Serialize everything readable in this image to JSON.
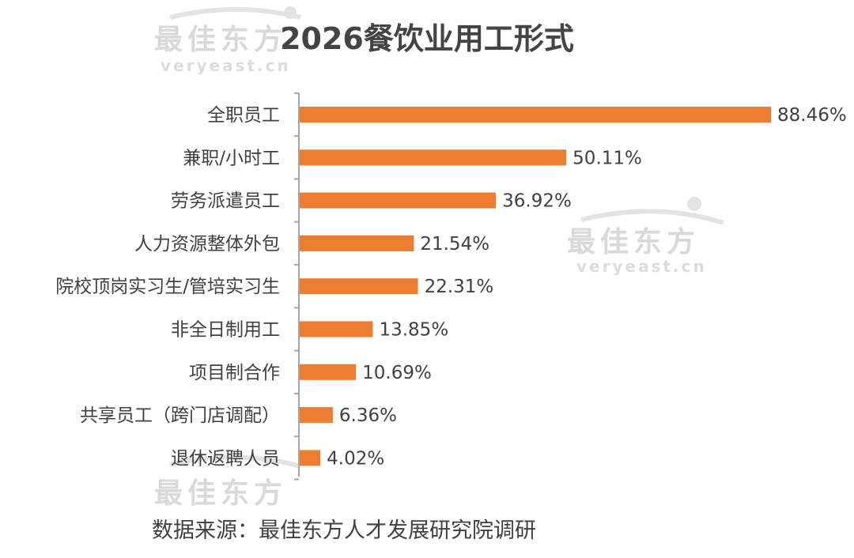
{
  "chart_data": {
    "type": "bar",
    "orientation": "horizontal",
    "title": "2026餐饮业用工形式",
    "categories": [
      "全职员工",
      "兼职/小时工",
      "劳务派遣员工",
      "人力资源整体外包",
      "院校顶岗实习生/管培实习生",
      "非全日制用工",
      "项目制合作",
      "共享员工（跨门店调配）",
      "退休返聘人员"
    ],
    "values": [
      88.46,
      50.11,
      36.92,
      21.54,
      22.31,
      13.85,
      10.69,
      6.36,
      4.02
    ],
    "value_labels": [
      "88.46%",
      "50.11%",
      "36.92%",
      "21.54%",
      "22.31%",
      "13.85%",
      "10.69%",
      "6.36%",
      "4.02%"
    ],
    "xlim": [
      0,
      88.46
    ],
    "grid": false,
    "bar_color": "#ed7d31"
  },
  "source": "数据来源：最佳东方人才发展研究院调研",
  "watermark": {
    "brand": "最佳东方",
    "site": "veryeast.cn"
  },
  "colors": {
    "axis": "#a6a6a6",
    "text": "#404040",
    "watermark": "#d9d9d9"
  }
}
